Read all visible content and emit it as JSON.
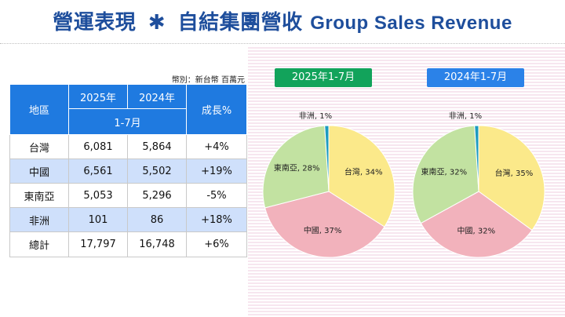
{
  "title": {
    "zh": "營運表現",
    "star": "✱",
    "zh2": "自結集團營收",
    "en": "Group Sales Revenue"
  },
  "unit_note": "幣別：新台幣 百萬元",
  "table": {
    "headers": {
      "region": "地區",
      "y2025": "2025年",
      "y2024": "2024年",
      "period": "1-7月",
      "growth": "成長%"
    },
    "rows": [
      {
        "region": "台灣",
        "v2025": "6,081",
        "v2024": "5,864",
        "growth": "+4%"
      },
      {
        "region": "中國",
        "v2025": "6,561",
        "v2024": "5,502",
        "growth": "+19%"
      },
      {
        "region": "東南亞",
        "v2025": "5,053",
        "v2024": "5,296",
        "growth": "-5%"
      },
      {
        "region": "非洲",
        "v2025": "101",
        "v2024": "86",
        "growth": "+18%"
      },
      {
        "region": "總計",
        "v2025": "17,797",
        "v2024": "16,748",
        "growth": "+6%"
      }
    ]
  },
  "colors": {
    "taiwan": "#fbe98a",
    "china": "#f2b2bc",
    "sea": "#c2e2a1",
    "africa": "#1d9bc0",
    "label2025": "#12a35b",
    "label2024": "#2b82e8"
  },
  "chart_data": [
    {
      "type": "pie",
      "title": "2025年1-7月",
      "series": [
        {
          "label": "台灣",
          "value": 34,
          "display": "台灣, 34%"
        },
        {
          "label": "中國",
          "value": 37,
          "display": "中國, 37%"
        },
        {
          "label": "東南亞",
          "value": 28,
          "display": "東南亞, 28%"
        },
        {
          "label": "非洲",
          "value": 1,
          "display": "非洲, 1%"
        }
      ]
    },
    {
      "type": "pie",
      "title": "2024年1-7月",
      "series": [
        {
          "label": "台灣",
          "value": 35,
          "display": "台灣, 35%"
        },
        {
          "label": "中國",
          "value": 32,
          "display": "中國, 32%"
        },
        {
          "label": "東南亞",
          "value": 32,
          "display": "東南亞, 32%"
        },
        {
          "label": "非洲",
          "value": 1,
          "display": "非洲, 1%"
        }
      ]
    }
  ]
}
